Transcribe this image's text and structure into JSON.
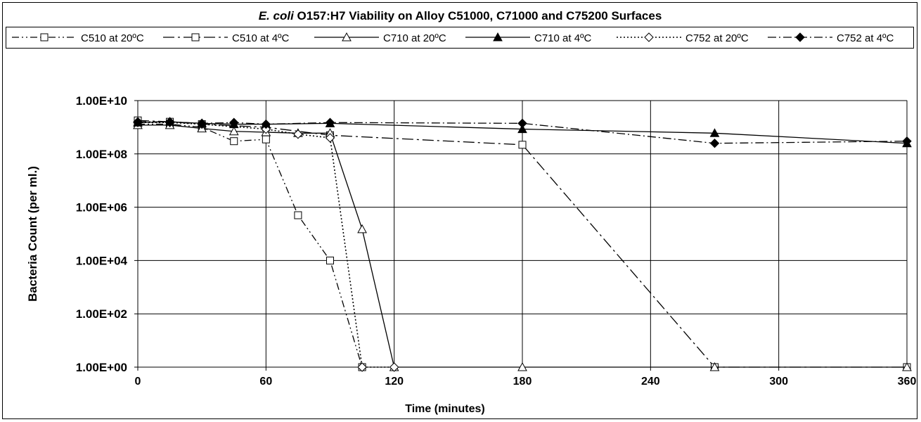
{
  "chart_data": {
    "type": "line",
    "title_italic": "E. coli",
    "title_rest": " O157:H7 Viability on Alloy C51000, C71000 and C75200 Surfaces",
    "xlabel": "Time (minutes)",
    "ylabel": "Bacteria Count (per ml.)",
    "xlim": [
      0,
      360
    ],
    "ylim": [
      1,
      10000000000
    ],
    "yscale": "log",
    "x_ticks": [
      "0",
      "60",
      "120",
      "180",
      "240",
      "300",
      "360"
    ],
    "y_ticks": [
      "1.00E+00",
      "1.00E+02",
      "1.00E+04",
      "1.00E+06",
      "1.00E+08",
      "1.00E+10"
    ],
    "grid": true,
    "legend_position": "top",
    "series": [
      {
        "name": "C510 at 20ºC",
        "line": "dash-dot-dot",
        "marker": "square-open",
        "points": [
          [
            0,
            1300000000
          ],
          [
            15,
            1300000000
          ],
          [
            30,
            1000000000
          ],
          [
            45,
            300000000
          ],
          [
            60,
            350000000
          ],
          [
            75,
            500000
          ],
          [
            90,
            10000
          ],
          [
            105,
            1
          ]
        ]
      },
      {
        "name": "C510 at 4ºC",
        "line": "long-dash-dot",
        "marker": "square-open",
        "points": [
          [
            0,
            1800000000
          ],
          [
            15,
            1600000000
          ],
          [
            30,
            1300000000
          ],
          [
            60,
            1000000000
          ],
          [
            90,
            500000000
          ],
          [
            180,
            220000000
          ],
          [
            270,
            1
          ],
          [
            360,
            1
          ]
        ]
      },
      {
        "name": "C710 at 20ºC",
        "line": "solid",
        "marker": "triangle-open",
        "points": [
          [
            0,
            1200000000
          ],
          [
            15,
            1200000000
          ],
          [
            30,
            900000000
          ],
          [
            45,
            700000000
          ],
          [
            60,
            650000000
          ],
          [
            75,
            600000000
          ],
          [
            90,
            600000000
          ],
          [
            105,
            150000
          ],
          [
            120,
            1
          ],
          [
            180,
            1
          ],
          [
            270,
            1
          ],
          [
            360,
            1
          ]
        ]
      },
      {
        "name": "C710 at 4ºC",
        "line": "solid",
        "marker": "triangle-filled",
        "points": [
          [
            0,
            1500000000
          ],
          [
            15,
            1600000000
          ],
          [
            30,
            1400000000
          ],
          [
            45,
            1300000000
          ],
          [
            60,
            1300000000
          ],
          [
            90,
            1400000000
          ],
          [
            180,
            850000000
          ],
          [
            270,
            600000000
          ],
          [
            360,
            250000000
          ]
        ]
      },
      {
        "name": "C752 at 20ºC",
        "line": "dotted",
        "marker": "diamond-open",
        "points": [
          [
            0,
            1500000000
          ],
          [
            15,
            1500000000
          ],
          [
            30,
            1300000000
          ],
          [
            60,
            850000000
          ],
          [
            75,
            550000000
          ],
          [
            90,
            400000000
          ],
          [
            105,
            1
          ],
          [
            120,
            1
          ]
        ]
      },
      {
        "name": "C752 at 4ºC",
        "line": "dash-dot",
        "marker": "diamond-filled",
        "points": [
          [
            0,
            1600000000
          ],
          [
            15,
            1600000000
          ],
          [
            30,
            1400000000
          ],
          [
            45,
            1500000000
          ],
          [
            60,
            1300000000
          ],
          [
            90,
            1500000000
          ],
          [
            180,
            1400000000
          ],
          [
            270,
            250000000
          ],
          [
            360,
            300000000
          ]
        ]
      }
    ]
  }
}
